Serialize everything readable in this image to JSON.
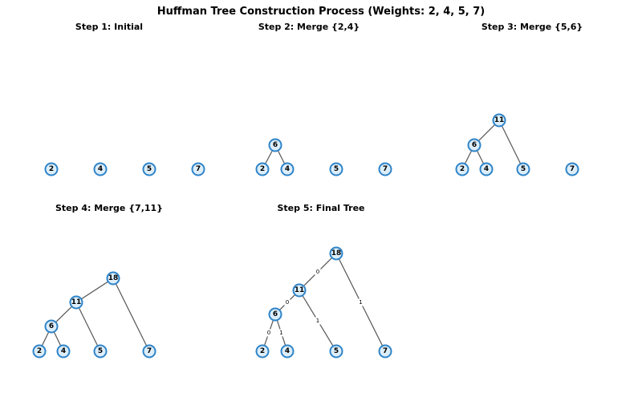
{
  "title": "Huffman Tree Construction Process (Weights: 2, 4, 5, 7)",
  "panels": [
    {
      "id": "step1",
      "title": "Step 1: Initial",
      "nodes": [
        {
          "id": "n2",
          "label": "2"
        },
        {
          "id": "n4",
          "label": "4"
        },
        {
          "id": "n5",
          "label": "5"
        },
        {
          "id": "n7",
          "label": "7"
        }
      ],
      "edges": []
    },
    {
      "id": "step2",
      "title": "Step 2: Merge {2,4}",
      "nodes": [
        {
          "id": "n6",
          "label": "6"
        },
        {
          "id": "n2",
          "label": "2"
        },
        {
          "id": "n4",
          "label": "4"
        },
        {
          "id": "n5",
          "label": "5"
        },
        {
          "id": "n7",
          "label": "7"
        }
      ],
      "edges": [
        {
          "from": "n6",
          "to": "n2"
        },
        {
          "from": "n6",
          "to": "n4"
        }
      ]
    },
    {
      "id": "step3",
      "title": "Step 3: Merge {5,6}",
      "nodes": [
        {
          "id": "n11",
          "label": "11"
        },
        {
          "id": "n6",
          "label": "6"
        },
        {
          "id": "n2",
          "label": "2"
        },
        {
          "id": "n4",
          "label": "4"
        },
        {
          "id": "n5",
          "label": "5"
        },
        {
          "id": "n7",
          "label": "7"
        }
      ],
      "edges": [
        {
          "from": "n11",
          "to": "n6"
        },
        {
          "from": "n11",
          "to": "n5"
        },
        {
          "from": "n6",
          "to": "n2"
        },
        {
          "from": "n6",
          "to": "n4"
        }
      ]
    },
    {
      "id": "step4",
      "title": "Step 4: Merge {7,11}",
      "nodes": [
        {
          "id": "n18",
          "label": "18"
        },
        {
          "id": "n11",
          "label": "11"
        },
        {
          "id": "n6",
          "label": "6"
        },
        {
          "id": "n2",
          "label": "2"
        },
        {
          "id": "n4",
          "label": "4"
        },
        {
          "id": "n5",
          "label": "5"
        },
        {
          "id": "n7",
          "label": "7"
        }
      ],
      "edges": [
        {
          "from": "n18",
          "to": "n11"
        },
        {
          "from": "n18",
          "to": "n7"
        },
        {
          "from": "n11",
          "to": "n6"
        },
        {
          "from": "n11",
          "to": "n5"
        },
        {
          "from": "n6",
          "to": "n2"
        },
        {
          "from": "n6",
          "to": "n4"
        }
      ]
    },
    {
      "id": "step5",
      "title": "Step 5: Final Tree",
      "nodes": [
        {
          "id": "n18",
          "label": "18"
        },
        {
          "id": "n11",
          "label": "11"
        },
        {
          "id": "n6",
          "label": "6"
        },
        {
          "id": "n2",
          "label": "2"
        },
        {
          "id": "n4",
          "label": "4"
        },
        {
          "id": "n5",
          "label": "5"
        },
        {
          "id": "n7",
          "label": "7"
        }
      ],
      "edges": [
        {
          "from": "n18",
          "to": "n11",
          "label": "0"
        },
        {
          "from": "n18",
          "to": "n7",
          "label": "1"
        },
        {
          "from": "n11",
          "to": "n6",
          "label": "0"
        },
        {
          "from": "n11",
          "to": "n5",
          "label": "1"
        },
        {
          "from": "n6",
          "to": "n2",
          "label": "0"
        },
        {
          "from": "n6",
          "to": "n4",
          "label": "1"
        }
      ]
    }
  ]
}
